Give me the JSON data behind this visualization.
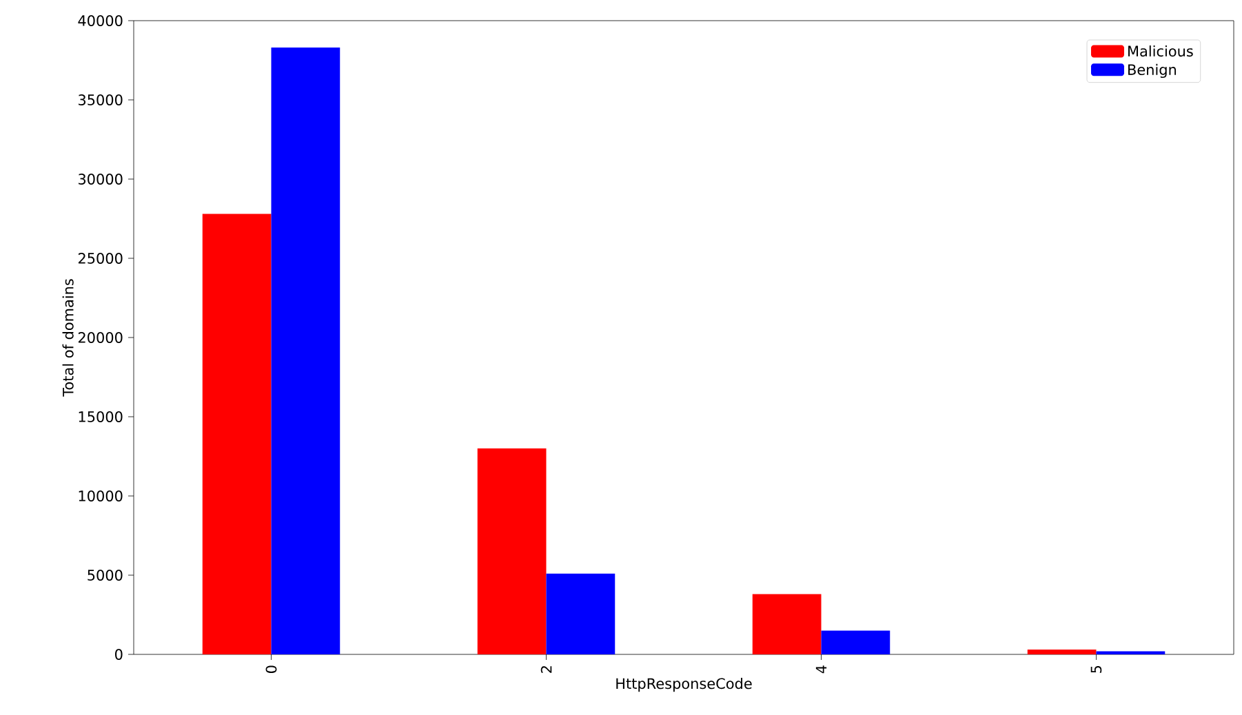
{
  "chart_data": {
    "type": "bar",
    "xlabel": "HttpResponseCode",
    "ylabel": "Total of domains",
    "categories": [
      "0",
      "2",
      "4",
      "5"
    ],
    "series": [
      {
        "name": "Malicious",
        "color": "#ff0000",
        "values": [
          27800,
          13000,
          3800,
          300
        ]
      },
      {
        "name": "Benign",
        "color": "#0000ff",
        "values": [
          38300,
          5100,
          1500,
          200
        ]
      }
    ],
    "ylim": [
      0,
      40000
    ],
    "yticks": [
      0,
      5000,
      10000,
      15000,
      20000,
      25000,
      30000,
      35000,
      40000
    ],
    "legend": "top right",
    "grid": false
  }
}
